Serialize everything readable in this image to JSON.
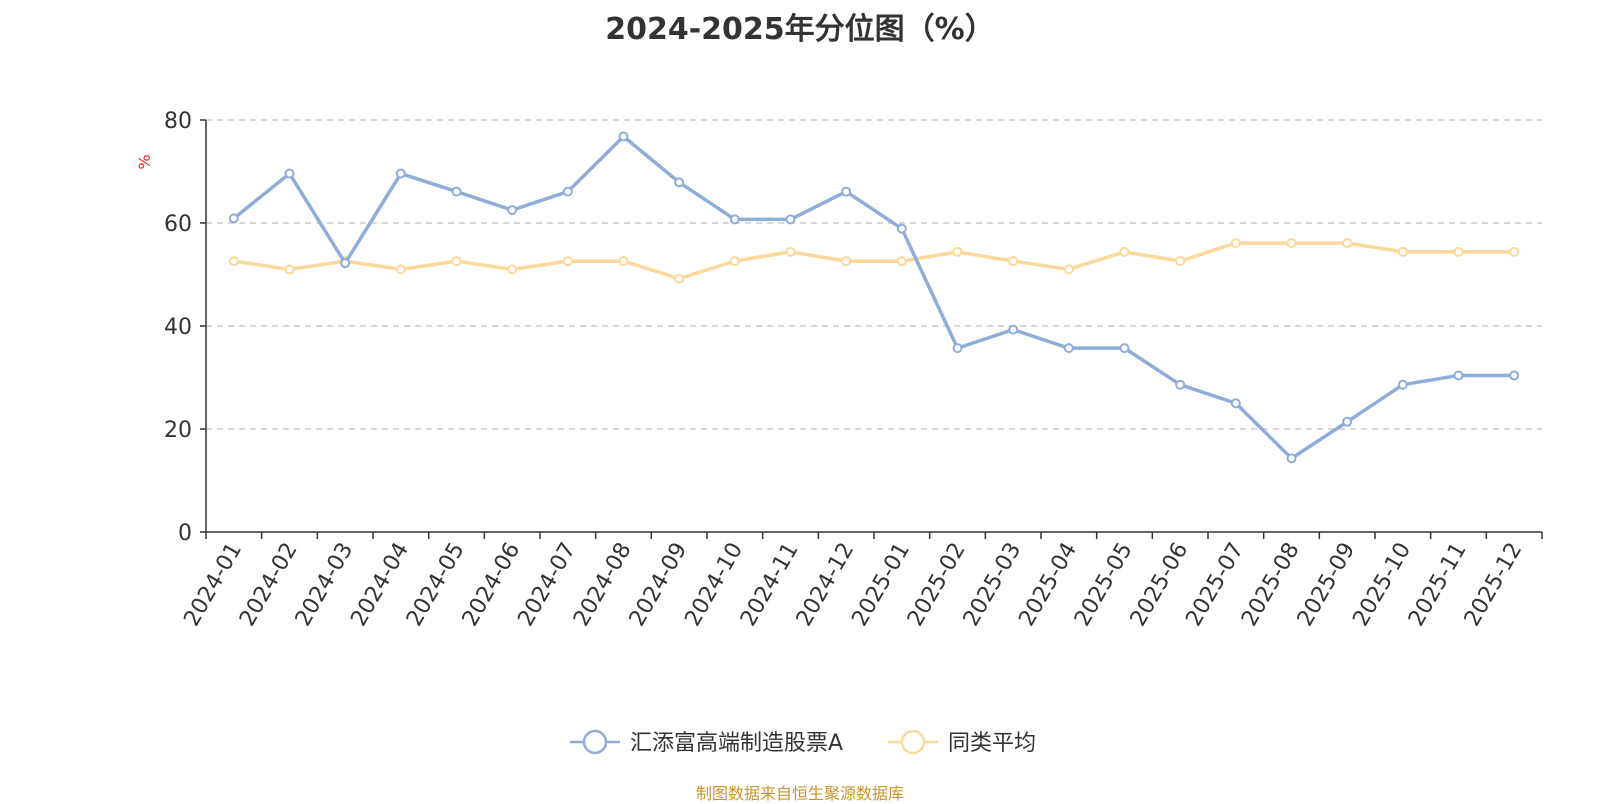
{
  "chart_data": {
    "type": "line",
    "title": "2024-2025年分位图（%）",
    "ylabel": "%",
    "ylim": [
      0,
      80
    ],
    "yticks": [
      0,
      20,
      40,
      60,
      80
    ],
    "grid": true,
    "legend_position": "bottom",
    "categories": [
      "2024-01",
      "2024-02",
      "2024-03",
      "2024-04",
      "2024-05",
      "2024-06",
      "2024-07",
      "2024-08",
      "2024-09",
      "2024-10",
      "2024-11",
      "2024-12",
      "2025-01",
      "2025-02",
      "2025-03",
      "2025-04",
      "2025-05",
      "2025-06",
      "2025-07",
      "2025-08",
      "2025-09",
      "2025-10",
      "2025-11",
      "2025-12"
    ],
    "series": [
      {
        "name": "汇添富高端制造股票A",
        "color": "#8eadd9",
        "values": [
          60.9,
          69.6,
          52.2,
          69.6,
          66.1,
          62.5,
          66.1,
          76.8,
          67.9,
          60.7,
          60.7,
          66.1,
          58.9,
          35.7,
          39.3,
          35.7,
          35.7,
          28.6,
          25.0,
          14.3,
          21.4,
          28.6,
          30.4,
          30.4
        ]
      },
      {
        "name": "同类平均",
        "color": "#fcd89a",
        "values": [
          52.6,
          51.0,
          52.6,
          51.0,
          52.6,
          51.0,
          52.6,
          52.6,
          49.2,
          52.6,
          54.4,
          52.6,
          52.6,
          54.4,
          52.6,
          51.0,
          54.4,
          52.6,
          56.1,
          56.1,
          56.1,
          54.4,
          54.4,
          54.4
        ]
      }
    ]
  },
  "source_note": "制图数据来自恒生聚源数据库"
}
